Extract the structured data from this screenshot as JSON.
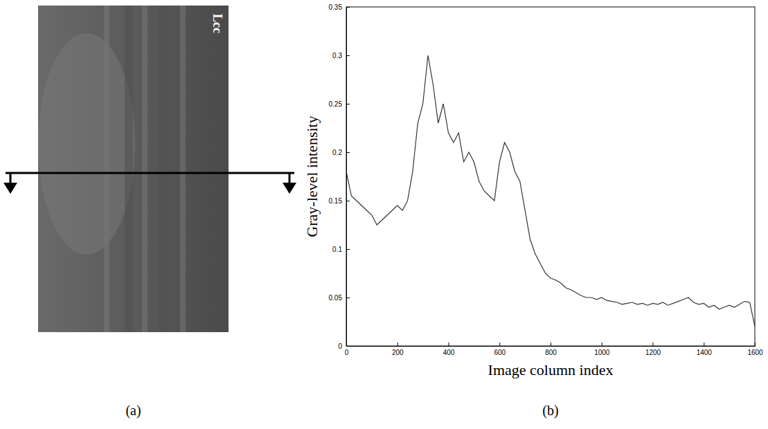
{
  "figure": {
    "image_label": "Lcc",
    "panel_labels": [
      "(a)",
      "(b)"
    ]
  },
  "chart_data": {
    "type": "line",
    "xlabel": "Image column index",
    "ylabel": "Gray-level intensity",
    "x": [
      0,
      20,
      40,
      60,
      80,
      100,
      120,
      140,
      160,
      180,
      200,
      220,
      240,
      260,
      280,
      300,
      320,
      340,
      360,
      380,
      400,
      420,
      440,
      460,
      480,
      500,
      520,
      540,
      560,
      580,
      600,
      620,
      640,
      660,
      680,
      700,
      720,
      740,
      760,
      780,
      800,
      820,
      840,
      860,
      880,
      900,
      920,
      940,
      960,
      980,
      1000,
      1020,
      1040,
      1060,
      1080,
      1100,
      1120,
      1140,
      1160,
      1180,
      1200,
      1220,
      1240,
      1260,
      1280,
      1300,
      1320,
      1340,
      1360,
      1380,
      1400,
      1420,
      1440,
      1460,
      1480,
      1500,
      1520,
      1540,
      1560,
      1580,
      1600
    ],
    "values": [
      0.18,
      0.155,
      0.15,
      0.145,
      0.14,
      0.135,
      0.125,
      0.13,
      0.135,
      0.14,
      0.145,
      0.14,
      0.15,
      0.18,
      0.23,
      0.25,
      0.3,
      0.27,
      0.23,
      0.25,
      0.22,
      0.21,
      0.22,
      0.19,
      0.2,
      0.19,
      0.17,
      0.16,
      0.155,
      0.15,
      0.19,
      0.21,
      0.2,
      0.18,
      0.17,
      0.14,
      0.11,
      0.095,
      0.085,
      0.075,
      0.07,
      0.068,
      0.065,
      0.06,
      0.058,
      0.055,
      0.052,
      0.05,
      0.05,
      0.048,
      0.05,
      0.047,
      0.046,
      0.045,
      0.043,
      0.044,
      0.045,
      0.043,
      0.044,
      0.042,
      0.044,
      0.043,
      0.045,
      0.042,
      0.044,
      0.046,
      0.048,
      0.05,
      0.045,
      0.043,
      0.044,
      0.04,
      0.042,
      0.038,
      0.04,
      0.042,
      0.04,
      0.043,
      0.046,
      0.045,
      0.02
    ],
    "color": "#333333",
    "xlim": [
      0,
      1600
    ],
    "ylim": [
      0,
      0.35
    ],
    "xticks": [
      0,
      200,
      400,
      600,
      800,
      1000,
      1200,
      1400,
      1600
    ],
    "yticks": [
      0,
      0.05,
      0.1,
      0.15,
      0.2,
      0.25,
      0.3,
      0.35
    ],
    "grid": false
  }
}
